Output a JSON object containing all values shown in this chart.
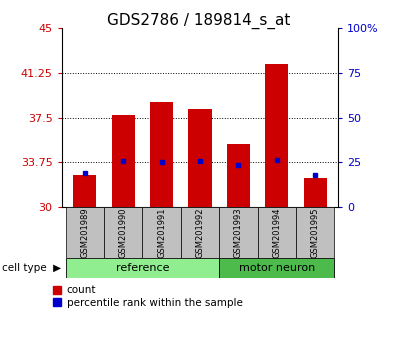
{
  "title": "GDS2786 / 189814_s_at",
  "categories": [
    "GSM201989",
    "GSM201990",
    "GSM201991",
    "GSM201992",
    "GSM201993",
    "GSM201994",
    "GSM201995"
  ],
  "red_values": [
    32.7,
    37.7,
    38.8,
    38.2,
    35.3,
    42.0,
    32.4
  ],
  "blue_values": [
    32.9,
    33.85,
    33.8,
    33.9,
    33.5,
    33.95,
    32.7
  ],
  "ylim_left": [
    30,
    45
  ],
  "ylim_right": [
    0,
    100
  ],
  "yticks_left": [
    30,
    33.75,
    37.5,
    41.25,
    45
  ],
  "ytick_labels_left": [
    "30",
    "33.75",
    "37.5",
    "41.25",
    "45"
  ],
  "yticks_right": [
    0,
    25,
    50,
    75,
    100
  ],
  "ytick_labels_right": [
    "0",
    "25",
    "50",
    "75",
    "100%"
  ],
  "gridlines": [
    33.75,
    37.5,
    41.25
  ],
  "groups": [
    {
      "label": "reference",
      "indices": [
        0,
        1,
        2,
        3
      ],
      "color": "#90EE90"
    },
    {
      "label": "motor neuron",
      "indices": [
        4,
        5,
        6
      ],
      "color": "#4CBB4C"
    }
  ],
  "bar_color": "#CC0000",
  "blue_marker_color": "#0000CC",
  "bar_width": 0.6,
  "cell_type_label": "cell type",
  "legend_items": [
    "count",
    "percentile rank within the sample"
  ],
  "tick_color_left": "#CC0000",
  "tick_color_right": "#0000CC",
  "xlabel_bg": "#C0C0C0",
  "title_fontsize": 11,
  "axis_fontsize": 8,
  "label_fontsize": 7
}
